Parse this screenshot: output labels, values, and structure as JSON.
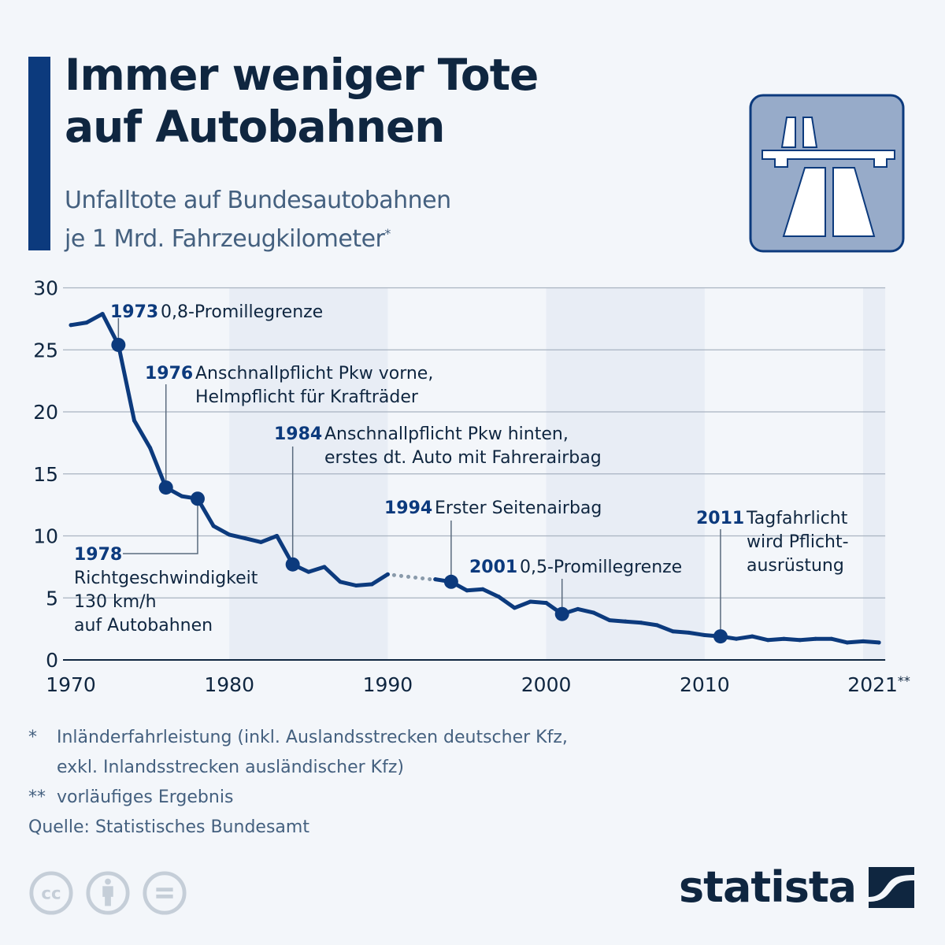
{
  "header": {
    "title_line1": "Immer weniger Tote",
    "title_line2": "auf Autobahnen",
    "subtitle_line1": "Unfalltote auf Bundesautobahnen",
    "subtitle_line2": "je 1 Mrd. Fahrzeugkilometer",
    "subtitle_mark": "*",
    "icon": "motorway-sign-icon"
  },
  "colors": {
    "line": "#0c3a7d",
    "dotted_gap": "#8a9bab",
    "band": "#e8edf5",
    "background": "#f3f6fa",
    "grid": "#a9b3c1",
    "text_dark": "#0f2640",
    "text_muted": "#44607f",
    "license_icons": "#c5ced8"
  },
  "chart_data": {
    "type": "line",
    "title": "Unfalltote auf Bundesautobahnen je 1 Mrd. Fahrzeugkilometer",
    "xlabel": "",
    "ylabel": "",
    "xlim": [
      1970,
      2021
    ],
    "ylim": [
      0,
      30
    ],
    "yticks": [
      0,
      5,
      10,
      15,
      20,
      25,
      30
    ],
    "xticks": [
      {
        "value": 1970,
        "label": "1970"
      },
      {
        "value": 1980,
        "label": "1980"
      },
      {
        "value": 1990,
        "label": "1990"
      },
      {
        "value": 2000,
        "label": "2000"
      },
      {
        "value": 2010,
        "label": "2010"
      },
      {
        "value": 2021,
        "label": "2021",
        "suffix": "**"
      }
    ],
    "grid": true,
    "shaded_decades": [
      [
        1980,
        1990
      ],
      [
        2000,
        2010
      ],
      [
        2020,
        2021
      ]
    ],
    "series": [
      {
        "name": "Unfalltote je 1 Mrd. Fahrzeugkilometer",
        "x": [
          1970,
          1971,
          1972,
          1973,
          1974,
          1975,
          1976,
          1977,
          1978,
          1979,
          1980,
          1981,
          1982,
          1983,
          1984,
          1985,
          1986,
          1987,
          1988,
          1989,
          1990,
          1993,
          1994,
          1995,
          1996,
          1997,
          1998,
          1999,
          2000,
          2001,
          2002,
          2003,
          2004,
          2005,
          2006,
          2007,
          2008,
          2009,
          2010,
          2011,
          2012,
          2013,
          2014,
          2015,
          2016,
          2017,
          2018,
          2019,
          2020,
          2021
        ],
        "values": [
          27.0,
          27.2,
          27.9,
          25.4,
          19.3,
          17.1,
          13.9,
          13.2,
          13.0,
          10.8,
          10.1,
          9.8,
          9.5,
          10.0,
          7.7,
          7.1,
          7.5,
          6.3,
          6.0,
          6.1,
          6.9,
          6.5,
          6.3,
          5.6,
          5.7,
          5.1,
          4.2,
          4.7,
          4.6,
          3.7,
          4.1,
          3.8,
          3.2,
          3.1,
          3.0,
          2.8,
          2.3,
          2.2,
          2.0,
          1.9,
          1.7,
          1.9,
          1.6,
          1.7,
          1.6,
          1.7,
          1.7,
          1.4,
          1.5,
          1.4
        ]
      }
    ],
    "gap": {
      "from": 1990,
      "to": 1993,
      "style": "dotted"
    },
    "annotations": [
      {
        "year": "1973",
        "text": [
          "0,8-Promillegrenze"
        ],
        "marker_value": 25.4
      },
      {
        "year": "1976",
        "text": [
          "Anschnallpflicht Pkw vorne,",
          "Helmpflicht für Krafträder"
        ],
        "marker_value": 13.9
      },
      {
        "year": "1978",
        "text": [
          "Richtgeschwindigkeit",
          "130 km/h",
          "auf Autobahnen"
        ],
        "marker_value": 13.0
      },
      {
        "year": "1984",
        "text": [
          "Anschnallpflicht Pkw hinten,",
          "erstes dt. Auto mit Fahrerairbag"
        ],
        "marker_value": 7.7
      },
      {
        "year": "1994",
        "text": [
          "Erster Seitenairbag"
        ],
        "marker_value": 6.3
      },
      {
        "year": "2001",
        "text": [
          "0,5-Promillegrenze"
        ],
        "marker_value": 3.7
      },
      {
        "year": "2011",
        "text": [
          "Tagfahrlicht",
          "wird Pflicht-",
          "ausrüstung"
        ],
        "marker_value": 1.9
      }
    ]
  },
  "footnotes": {
    "note1_mark": "*",
    "note1_line1": "Inländerfahrleistung (inkl. Auslandsstrecken deutscher Kfz,",
    "note1_line2": "exkl. Inlandsstrecken ausländischer Kfz)",
    "note2_mark": "**",
    "note2_text": "vorläufiges Ergebnis",
    "source": "Quelle: Statistisches Bundesamt"
  },
  "footer": {
    "license_icons": [
      "cc-icon",
      "attribution-icon",
      "no-derivatives-icon"
    ],
    "brand": "statista"
  }
}
